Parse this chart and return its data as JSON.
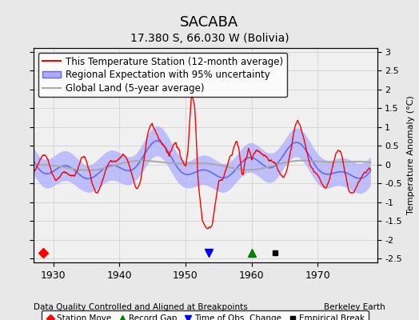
{
  "title": "SACABA",
  "subtitle": "17.380 S, 66.030 W (Bolivia)",
  "xlabel_bottom": "Data Quality Controlled and Aligned at Breakpoints",
  "xlabel_right": "Berkeley Earth",
  "ylabel": "Temperature Anomaly (°C)",
  "xlim": [
    1927,
    1979
  ],
  "ylim": [
    -2.6,
    3.1
  ],
  "yticks": [
    -2.5,
    -2,
    -1.5,
    -1,
    -0.5,
    0,
    0.5,
    1,
    1.5,
    2,
    2.5,
    3
  ],
  "xticks": [
    1930,
    1940,
    1950,
    1960,
    1970
  ],
  "bg_color": "#e8e8e8",
  "plot_bg_color": "#f0f0f0",
  "regional_color": "#6666ff",
  "regional_fill_color": "#aaaaff",
  "station_color": "#ff0000",
  "global_color": "#aaaaaa",
  "station_move_x": [
    1928.5
  ],
  "station_move_y": [
    -2.35
  ],
  "record_gap_x": [
    1960.0
  ],
  "record_gap_y": [
    -2.35
  ],
  "obs_change_x": [
    1953.5
  ],
  "obs_change_y": [
    -2.35
  ],
  "empirical_break_x": [
    1963.5
  ],
  "empirical_break_y": [
    -2.35
  ],
  "gridline_color": "#cccccc",
  "legend_fontsize": 8.5,
  "title_fontsize": 13,
  "subtitle_fontsize": 10
}
